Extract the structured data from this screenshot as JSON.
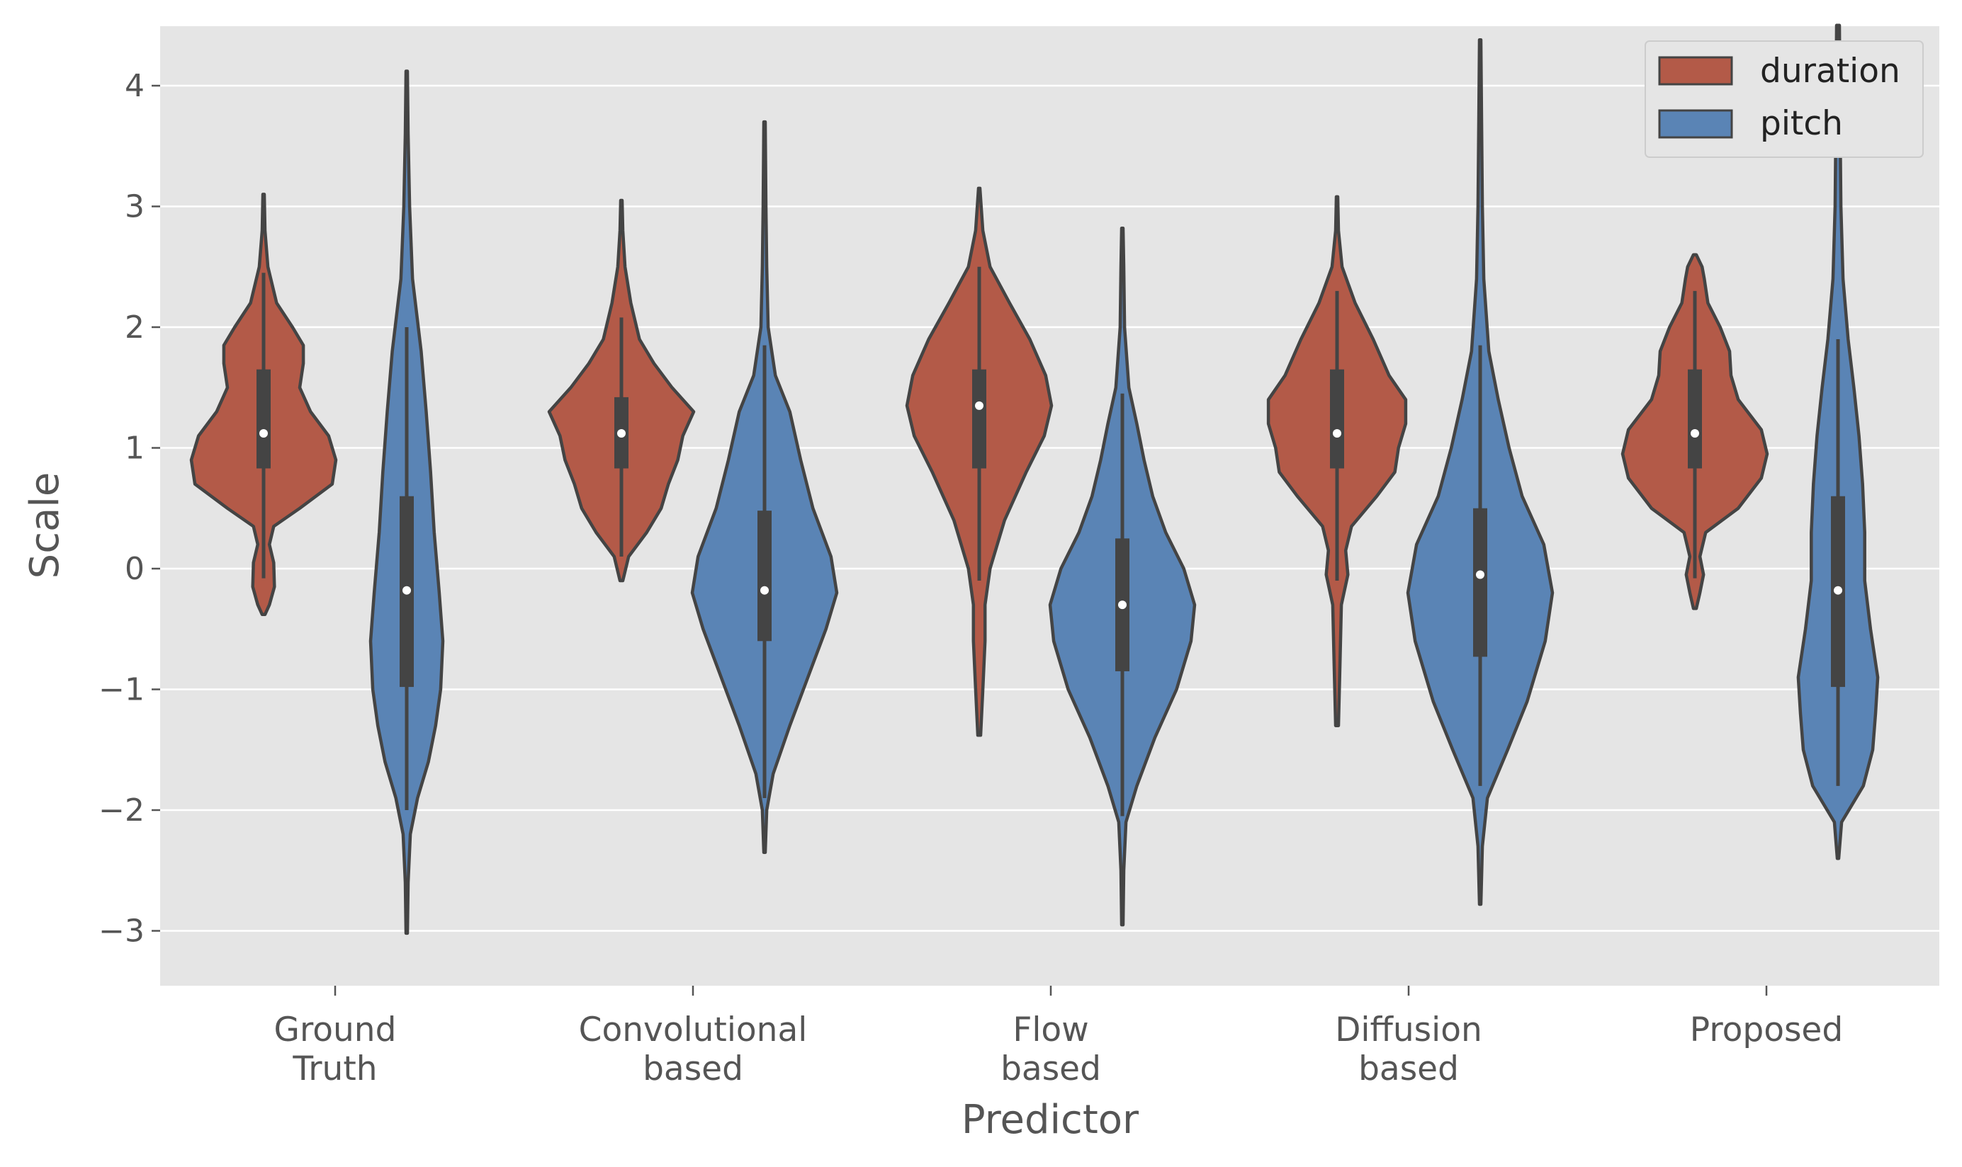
{
  "chart_data": {
    "type": "violin",
    "xlabel": "Predictor",
    "ylabel": "Scale",
    "ylim": [
      -3.5,
      4.5
    ],
    "yticks": [
      4,
      3,
      2,
      1,
      0,
      -1,
      -2,
      -3
    ],
    "ytick_labels": [
      "4",
      "3",
      "2",
      "1",
      "0",
      "−1",
      "−2",
      "−3"
    ],
    "categories": [
      [
        "Ground",
        "Truth"
      ],
      [
        "Convolutional",
        "based"
      ],
      [
        "Flow",
        "based"
      ],
      [
        "Diffusion",
        "based"
      ],
      [
        "Proposed"
      ]
    ],
    "grid": true,
    "legend_position": "top-right",
    "series": [
      {
        "name": "duration",
        "color": "#B35A48",
        "groups": [
          {
            "min": -0.38,
            "max": 3.1,
            "q1": 0.83,
            "median": 1.12,
            "q3": 1.65,
            "whisker_low": -0.08,
            "whisker_high": 2.45,
            "profile": [
              [
                -0.38,
                0.02
              ],
              [
                -0.3,
                0.08
              ],
              [
                -0.15,
                0.15
              ],
              [
                0.05,
                0.14
              ],
              [
                0.2,
                0.08
              ],
              [
                0.35,
                0.14
              ],
              [
                0.5,
                0.5
              ],
              [
                0.7,
                0.95
              ],
              [
                0.9,
                1.0
              ],
              [
                1.1,
                0.9
              ],
              [
                1.3,
                0.65
              ],
              [
                1.5,
                0.5
              ],
              [
                1.7,
                0.55
              ],
              [
                1.85,
                0.55
              ],
              [
                2.0,
                0.4
              ],
              [
                2.2,
                0.18
              ],
              [
                2.5,
                0.06
              ],
              [
                2.8,
                0.02
              ],
              [
                3.1,
                0.01
              ]
            ]
          },
          {
            "min": -0.1,
            "max": 3.05,
            "q1": 0.83,
            "median": 1.12,
            "q3": 1.42,
            "whisker_low": 0.1,
            "whisker_high": 2.08,
            "profile": [
              [
                -0.1,
                0.02
              ],
              [
                0.1,
                0.1
              ],
              [
                0.3,
                0.35
              ],
              [
                0.5,
                0.55
              ],
              [
                0.7,
                0.65
              ],
              [
                0.9,
                0.78
              ],
              [
                1.1,
                0.85
              ],
              [
                1.3,
                1.0
              ],
              [
                1.5,
                0.7
              ],
              [
                1.7,
                0.45
              ],
              [
                1.9,
                0.25
              ],
              [
                2.2,
                0.13
              ],
              [
                2.5,
                0.05
              ],
              [
                2.8,
                0.02
              ],
              [
                3.05,
                0.01
              ]
            ]
          },
          {
            "min": -1.38,
            "max": 3.15,
            "q1": 0.83,
            "median": 1.35,
            "q3": 1.65,
            "whisker_low": -0.1,
            "whisker_high": 2.5,
            "profile": [
              [
                -1.38,
                0.02
              ],
              [
                -1.0,
                0.05
              ],
              [
                -0.6,
                0.08
              ],
              [
                -0.3,
                0.08
              ],
              [
                0.0,
                0.15
              ],
              [
                0.4,
                0.35
              ],
              [
                0.8,
                0.65
              ],
              [
                1.1,
                0.9
              ],
              [
                1.35,
                1.0
              ],
              [
                1.6,
                0.92
              ],
              [
                1.9,
                0.7
              ],
              [
                2.2,
                0.42
              ],
              [
                2.5,
                0.15
              ],
              [
                2.8,
                0.05
              ],
              [
                3.15,
                0.01
              ]
            ]
          },
          {
            "min": -1.3,
            "max": 3.08,
            "q1": 0.83,
            "median": 1.12,
            "q3": 1.65,
            "whisker_low": -0.1,
            "whisker_high": 2.3,
            "profile": [
              [
                -1.3,
                0.02
              ],
              [
                -0.8,
                0.04
              ],
              [
                -0.3,
                0.06
              ],
              [
                -0.05,
                0.15
              ],
              [
                0.15,
                0.12
              ],
              [
                0.35,
                0.2
              ],
              [
                0.6,
                0.55
              ],
              [
                0.8,
                0.8
              ],
              [
                1.0,
                0.85
              ],
              [
                1.2,
                0.95
              ],
              [
                1.4,
                0.95
              ],
              [
                1.6,
                0.72
              ],
              [
                1.9,
                0.5
              ],
              [
                2.2,
                0.25
              ],
              [
                2.5,
                0.07
              ],
              [
                2.8,
                0.02
              ],
              [
                3.08,
                0.01
              ]
            ]
          },
          {
            "min": -0.33,
            "max": 2.6,
            "q1": 0.83,
            "median": 1.12,
            "q3": 1.65,
            "whisker_low": -0.08,
            "whisker_high": 2.3,
            "profile": [
              [
                -0.33,
                0.02
              ],
              [
                -0.2,
                0.07
              ],
              [
                -0.05,
                0.12
              ],
              [
                0.1,
                0.07
              ],
              [
                0.3,
                0.15
              ],
              [
                0.5,
                0.6
              ],
              [
                0.75,
                0.92
              ],
              [
                0.95,
                1.0
              ],
              [
                1.15,
                0.92
              ],
              [
                1.4,
                0.6
              ],
              [
                1.6,
                0.5
              ],
              [
                1.8,
                0.48
              ],
              [
                2.0,
                0.35
              ],
              [
                2.2,
                0.18
              ],
              [
                2.4,
                0.13
              ],
              [
                2.5,
                0.1
              ],
              [
                2.6,
                0.02
              ]
            ]
          }
        ]
      },
      {
        "name": "pitch",
        "color": "#5A84B5",
        "groups": [
          {
            "min": -3.02,
            "max": 4.12,
            "q1": -0.98,
            "median": -0.18,
            "q3": 0.6,
            "whisker_low": -2.0,
            "whisker_high": 2.0,
            "profile": [
              [
                -3.02,
                0.01
              ],
              [
                -2.6,
                0.02
              ],
              [
                -2.2,
                0.05
              ],
              [
                -1.9,
                0.15
              ],
              [
                -1.6,
                0.3
              ],
              [
                -1.3,
                0.4
              ],
              [
                -1.0,
                0.47
              ],
              [
                -0.6,
                0.5
              ],
              [
                -0.2,
                0.45
              ],
              [
                0.3,
                0.38
              ],
              [
                0.8,
                0.33
              ],
              [
                1.3,
                0.27
              ],
              [
                1.8,
                0.2
              ],
              [
                2.4,
                0.08
              ],
              [
                3.0,
                0.04
              ],
              [
                3.6,
                0.02
              ],
              [
                4.12,
                0.01
              ]
            ]
          },
          {
            "min": -2.35,
            "max": 3.7,
            "q1": -0.6,
            "median": -0.18,
            "q3": 0.48,
            "whisker_low": -1.9,
            "whisker_high": 1.85,
            "profile": [
              [
                -2.35,
                0.01
              ],
              [
                -2.0,
                0.03
              ],
              [
                -1.7,
                0.12
              ],
              [
                -1.3,
                0.35
              ],
              [
                -0.9,
                0.6
              ],
              [
                -0.5,
                0.85
              ],
              [
                -0.2,
                1.0
              ],
              [
                0.1,
                0.92
              ],
              [
                0.5,
                0.67
              ],
              [
                0.9,
                0.5
              ],
              [
                1.3,
                0.35
              ],
              [
                1.6,
                0.15
              ],
              [
                2.0,
                0.05
              ],
              [
                2.5,
                0.03
              ],
              [
                3.0,
                0.02
              ],
              [
                3.7,
                0.01
              ]
            ]
          },
          {
            "min": -2.95,
            "max": 2.82,
            "q1": -0.85,
            "median": -0.3,
            "q3": 0.25,
            "whisker_low": -2.05,
            "whisker_high": 1.45,
            "profile": [
              [
                -2.95,
                0.01
              ],
              [
                -2.5,
                0.02
              ],
              [
                -2.1,
                0.05
              ],
              [
                -1.8,
                0.2
              ],
              [
                -1.4,
                0.45
              ],
              [
                -1.0,
                0.75
              ],
              [
                -0.6,
                0.95
              ],
              [
                -0.3,
                1.0
              ],
              [
                0.0,
                0.85
              ],
              [
                0.3,
                0.6
              ],
              [
                0.6,
                0.42
              ],
              [
                0.9,
                0.3
              ],
              [
                1.2,
                0.2
              ],
              [
                1.5,
                0.09
              ],
              [
                2.0,
                0.03
              ],
              [
                2.5,
                0.02
              ],
              [
                2.82,
                0.01
              ]
            ]
          },
          {
            "min": -2.78,
            "max": 4.38,
            "q1": -0.73,
            "median": -0.05,
            "q3": 0.5,
            "whisker_low": -1.8,
            "whisker_high": 1.85,
            "profile": [
              [
                -2.78,
                0.01
              ],
              [
                -2.3,
                0.03
              ],
              [
                -1.9,
                0.1
              ],
              [
                -1.5,
                0.38
              ],
              [
                -1.1,
                0.65
              ],
              [
                -0.6,
                0.9
              ],
              [
                -0.2,
                1.0
              ],
              [
                0.2,
                0.88
              ],
              [
                0.6,
                0.58
              ],
              [
                1.0,
                0.4
              ],
              [
                1.4,
                0.25
              ],
              [
                1.8,
                0.12
              ],
              [
                2.4,
                0.05
              ],
              [
                3.0,
                0.03
              ],
              [
                3.7,
                0.02
              ],
              [
                4.38,
                0.01
              ]
            ]
          },
          {
            "min": -2.4,
            "max": 4.5,
            "q1": -0.98,
            "median": -0.18,
            "q3": 0.6,
            "whisker_low": -1.8,
            "whisker_high": 1.9,
            "profile": [
              [
                -2.4,
                0.01
              ],
              [
                -2.1,
                0.05
              ],
              [
                -1.8,
                0.35
              ],
              [
                -1.5,
                0.48
              ],
              [
                -1.2,
                0.52
              ],
              [
                -0.9,
                0.55
              ],
              [
                -0.5,
                0.45
              ],
              [
                -0.1,
                0.37
              ],
              [
                0.3,
                0.37
              ],
              [
                0.7,
                0.34
              ],
              [
                1.1,
                0.29
              ],
              [
                1.5,
                0.22
              ],
              [
                1.9,
                0.14
              ],
              [
                2.4,
                0.07
              ],
              [
                3.0,
                0.04
              ],
              [
                3.6,
                0.03
              ],
              [
                4.5,
                0.02
              ]
            ]
          }
        ]
      }
    ]
  }
}
